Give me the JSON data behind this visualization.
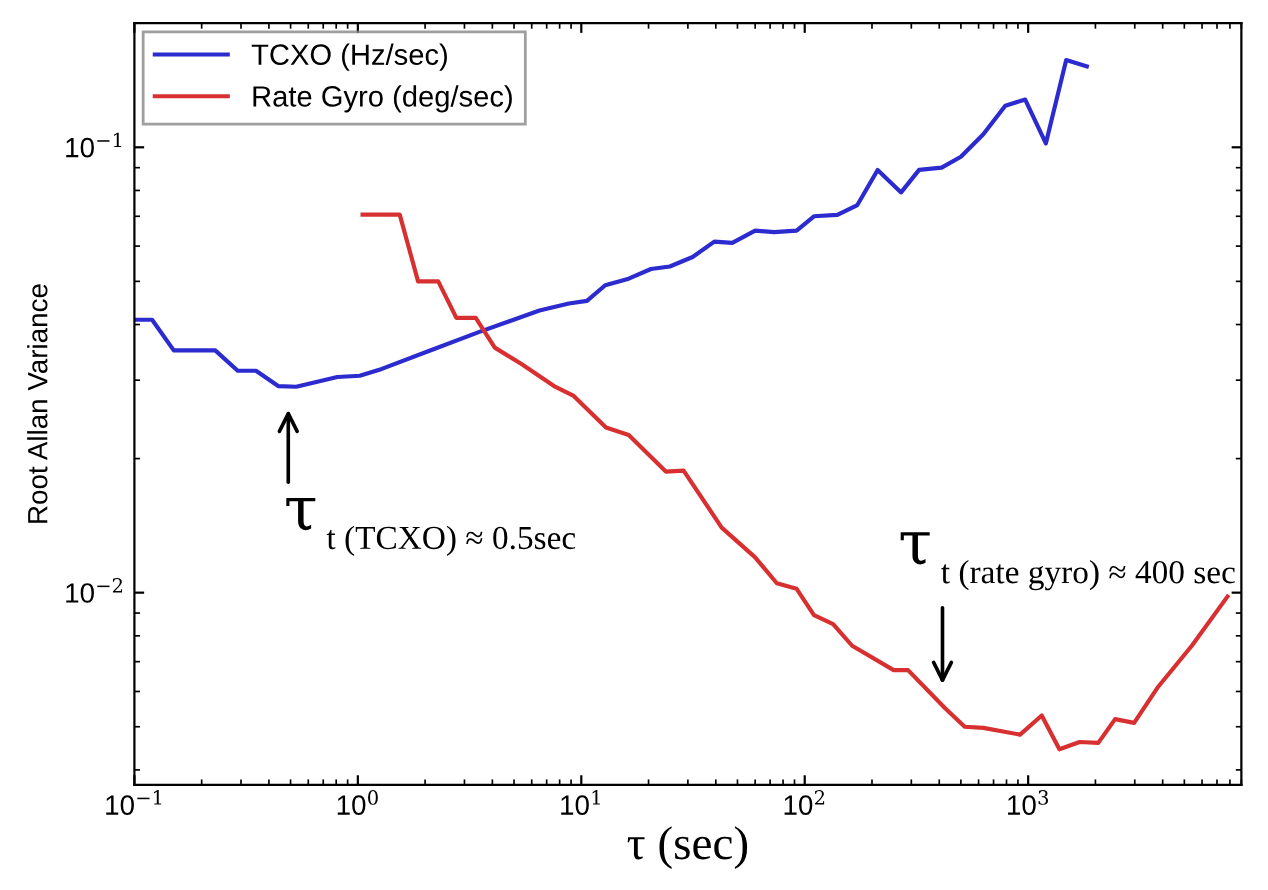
{
  "chart_data": {
    "type": "line",
    "xlabel": "τ (sec)",
    "ylabel": "Root Allan Variance",
    "log": "xy",
    "legend": "top left",
    "grid": false,
    "xlim": [
      0.1,
      9000
    ],
    "ylim": [
      0.0037,
      0.19
    ],
    "xticks": [
      {
        "value": 0.1,
        "label": "10$^{−1}$"
      },
      {
        "value": 1,
        "label": "10$^{0}$"
      },
      {
        "value": 10,
        "label": "10$^{1}$"
      },
      {
        "value": 100,
        "label": "10$^{2}$"
      },
      {
        "value": 1000,
        "label": "10$^{3}$"
      }
    ],
    "yticks": [
      {
        "value": 0.01,
        "label": "10$^{−2}$"
      },
      {
        "value": 0.1,
        "label": "10$^{−1}$"
      }
    ],
    "series": [
      {
        "name": "TCXO (Hz/sec)",
        "color": "#2b2bd0",
        "x": [
          0.1,
          0.12,
          0.15,
          0.23,
          0.29,
          0.35,
          0.44,
          0.53,
          0.81,
          1.02,
          1.28,
          2.05,
          3.5,
          6.5,
          8.8,
          10.6,
          12.8,
          16.3,
          20.5,
          24.9,
          31.5,
          39.4,
          47.4,
          60,
          73,
          92,
          110,
          140,
          172,
          212,
          270,
          325,
          410,
          500,
          630,
          790,
          970,
          1200,
          1480,
          1830
        ],
        "values": [
          0.041,
          0.041,
          0.035,
          0.035,
          0.0315,
          0.0315,
          0.0291,
          0.029,
          0.0305,
          0.0307,
          0.0318,
          0.0348,
          0.0385,
          0.043,
          0.0446,
          0.0452,
          0.049,
          0.0507,
          0.0533,
          0.054,
          0.0567,
          0.0614,
          0.061,
          0.065,
          0.0645,
          0.065,
          0.07,
          0.0705,
          0.0742,
          0.0889,
          0.0792,
          0.089,
          0.09,
          0.0952,
          0.107,
          0.124,
          0.128,
          0.102,
          0.157,
          0.152
        ]
      },
      {
        "name": "Rate Gyro (deg/sec)",
        "color": "#d83030",
        "x": [
          1.05,
          1.54,
          1.86,
          2.29,
          2.76,
          3.37,
          4.1,
          5.4,
          7.55,
          9.2,
          12.9,
          16.3,
          23.9,
          28.7,
          42.5,
          60,
          75,
          92,
          110,
          134,
          163,
          250,
          290,
          425,
          520,
          630,
          920,
          1150,
          1380,
          1700,
          2060,
          2450,
          2980,
          3820,
          5400,
          7800
        ],
        "values": [
          0.0706,
          0.0706,
          0.05,
          0.05,
          0.0414,
          0.0414,
          0.0355,
          0.0326,
          0.0291,
          0.0277,
          0.0235,
          0.0226,
          0.0187,
          0.0188,
          0.014,
          0.012,
          0.0105,
          0.0102,
          0.0089,
          0.0085,
          0.0076,
          0.0067,
          0.0067,
          0.0055,
          0.005,
          0.00497,
          0.0048,
          0.0053,
          0.00445,
          0.00462,
          0.0046,
          0.0052,
          0.0051,
          0.00615,
          0.0076,
          0.0098
        ]
      }
    ],
    "annotations": [
      "τ$_{t (TCXO) ≈ 0.5sec}$",
      "τ$_{t (rate gyro) ≈ 400 sec}$"
    ]
  }
}
